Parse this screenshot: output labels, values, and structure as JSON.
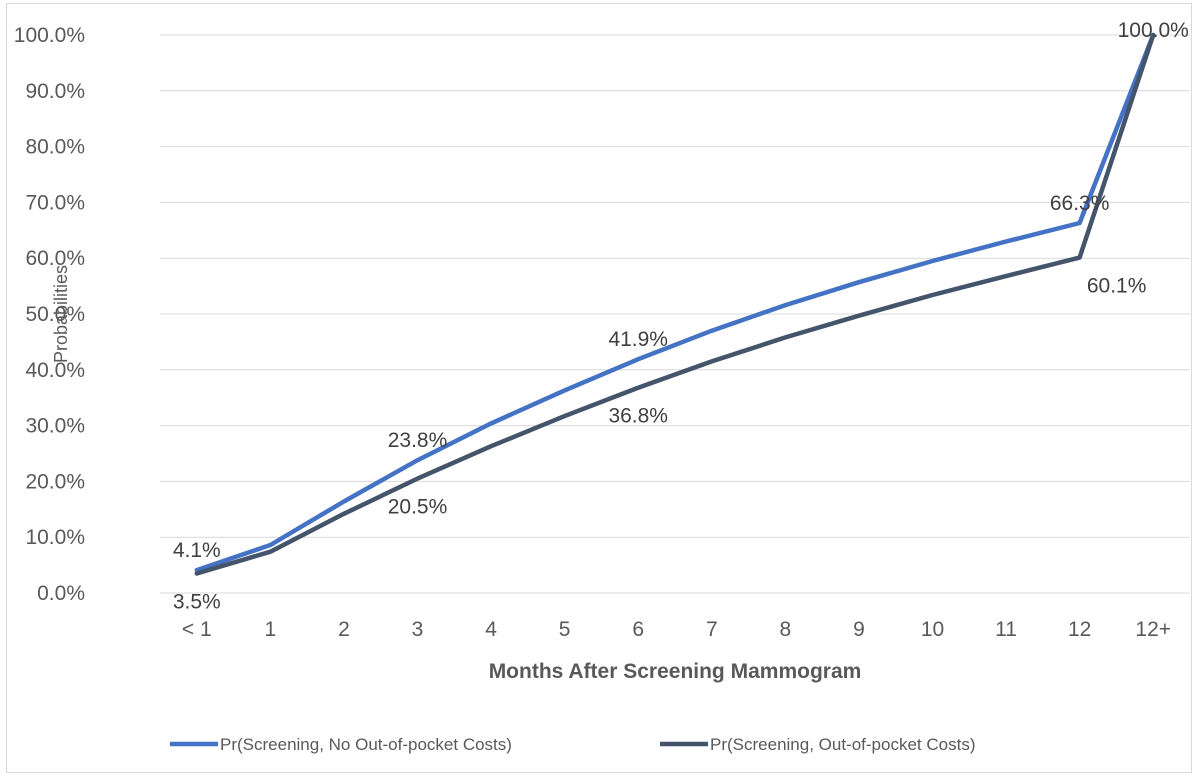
{
  "chart_data": {
    "type": "line",
    "title": "",
    "xlabel": "Months After Screening Mammogram",
    "ylabel": "Probabilities",
    "categories": [
      "< 1",
      "1",
      "2",
      "3",
      "4",
      "5",
      "6",
      "7",
      "8",
      "9",
      "10",
      "11",
      "12",
      "12+"
    ],
    "ylim": [
      0,
      100
    ],
    "y_ticks": [
      "0.0%",
      "10.0%",
      "20.0%",
      "30.0%",
      "40.0%",
      "50.0%",
      "60.0%",
      "70.0%",
      "80.0%",
      "90.0%",
      "100.0%"
    ],
    "y_tick_values": [
      0,
      10,
      20,
      30,
      40,
      50,
      60,
      70,
      80,
      90,
      100
    ],
    "grid": true,
    "legend_position": "bottom",
    "series": [
      {
        "name": "Pr(Screening, No Out-of-pocket Costs)",
        "color": "#4472c4",
        "values": [
          4.1,
          8.6,
          16.4,
          23.8,
          30.4,
          36.3,
          41.9,
          47.0,
          51.6,
          55.7,
          59.5,
          63.0,
          66.3,
          100.0
        ],
        "data_labels": [
          {
            "index": 0,
            "text": "4.1%"
          },
          {
            "index": 3,
            "text": "23.8%"
          },
          {
            "index": 6,
            "text": "41.9%"
          },
          {
            "index": 12,
            "text": "66.3%"
          },
          {
            "index": 13,
            "text": "100.0%"
          }
        ]
      },
      {
        "name": "Pr(Screening, Out-of-pocket Costs)",
        "color": "#44546a",
        "values": [
          3.5,
          7.4,
          14.2,
          20.5,
          26.3,
          31.7,
          36.8,
          41.5,
          45.8,
          49.7,
          53.4,
          56.8,
          60.1,
          100.0
        ],
        "data_labels": [
          {
            "index": 0,
            "text": "3.5%"
          },
          {
            "index": 3,
            "text": "20.5%"
          },
          {
            "index": 6,
            "text": "36.8%"
          },
          {
            "index": 12,
            "text": "60.1%"
          }
        ]
      }
    ]
  }
}
